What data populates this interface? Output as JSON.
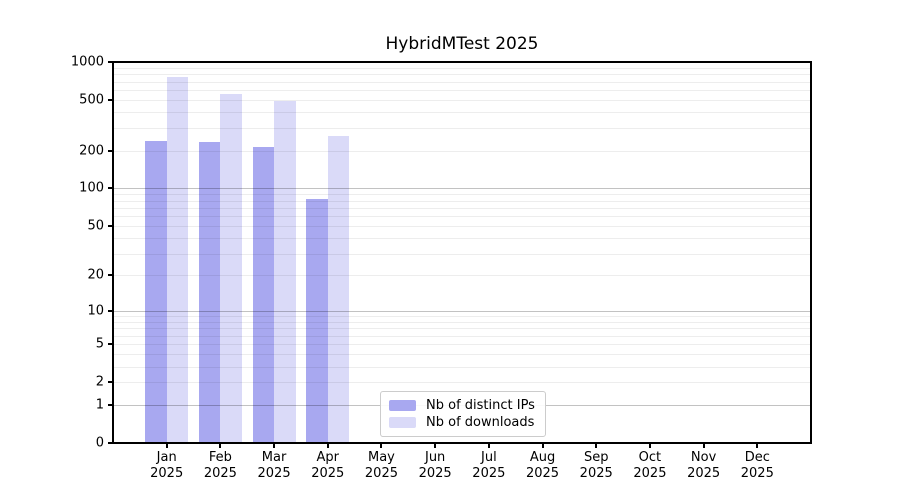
{
  "chart_data": {
    "type": "bar",
    "title": "HybridMTest 2025",
    "x": {
      "months": [
        "Jan",
        "Feb",
        "Mar",
        "Apr",
        "May",
        "Jun",
        "Jul",
        "Aug",
        "Sep",
        "Oct",
        "Nov",
        "Dec"
      ],
      "year": "2025"
    },
    "series": [
      {
        "name": "Nb of distinct IPs",
        "color": "#a8a8f0",
        "values": [
          240,
          233,
          214,
          83,
          null,
          null,
          null,
          null,
          null,
          null,
          null,
          null
        ]
      },
      {
        "name": "Nb of downloads",
        "color": "#dadaf8",
        "values": [
          760,
          560,
          490,
          260,
          null,
          null,
          null,
          null,
          null,
          null,
          null,
          null
        ]
      }
    ],
    "y_axis": {
      "scale": "log1p",
      "min": 0,
      "max": 1000,
      "tick_labels": [
        "1000",
        "500",
        "200",
        "100",
        "50",
        "20",
        "10",
        "5",
        "2",
        "1",
        "0"
      ],
      "tick_values": [
        1000,
        500,
        200,
        100,
        50,
        20,
        10,
        5,
        2,
        1,
        0
      ],
      "major_gridlines": [
        100,
        10,
        1
      ],
      "minor_gridlines": [
        2,
        3,
        4,
        5,
        6,
        7,
        8,
        9,
        20,
        30,
        40,
        50,
        60,
        70,
        80,
        90,
        200,
        300,
        400,
        500,
        600,
        700,
        800,
        900
      ]
    },
    "legend": {
      "position": "lower center",
      "labels": [
        "Nb of distinct IPs",
        "Nb of downloads"
      ]
    },
    "grid": true,
    "colors": {
      "axis": "#000000",
      "background": "#ffffff",
      "legend_border": "#cccccc"
    }
  }
}
